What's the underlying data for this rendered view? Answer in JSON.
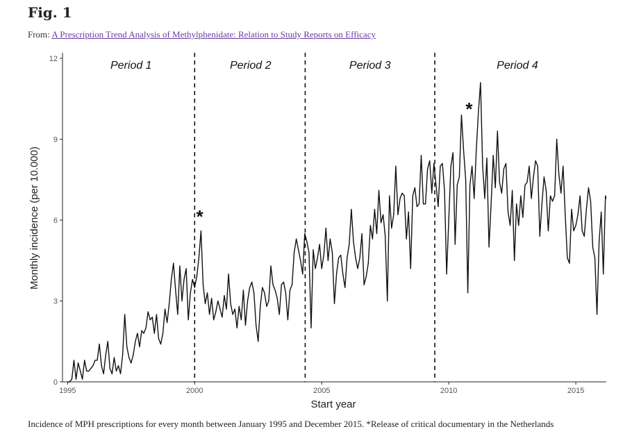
{
  "figure": {
    "title": "Fig. 1",
    "from_prefix": "From:",
    "source_link": "A Prescription Trend Analysis of Methylphenidate: Relation to Study Reports on Efficacy",
    "caption": "Incidence of MPH prescriptions for every month between January 1995 and December 2015. *Release of critical documentary in the Netherlands"
  },
  "colors": {
    "line": "#111111",
    "link": "#6a3aa2",
    "panel": "#ffffff"
  },
  "chart_data": {
    "type": "line",
    "xlabel": "Start year",
    "ylabel": "Monthly incidence (per 10.000)",
    "xlim": [
      1994.8,
      2016.2
    ],
    "ylim": [
      0,
      12
    ],
    "x_ticks": [
      1995,
      2000,
      2005,
      2010,
      2015
    ],
    "y_ticks": [
      0,
      3,
      6,
      9,
      12
    ],
    "grid": false,
    "series": [
      {
        "x_start": "1995-01",
        "step": "month",
        "values": [
          0.0,
          0.0,
          0.1,
          0.8,
          0.1,
          0.7,
          0.4,
          0.1,
          0.8,
          0.4,
          0.4,
          0.5,
          0.6,
          0.8,
          0.8,
          1.4,
          0.6,
          0.3,
          1.0,
          1.5,
          0.5,
          0.3,
          0.9,
          0.4,
          0.6,
          0.3,
          1.0,
          2.5,
          1.3,
          0.9,
          0.7,
          1.0,
          1.5,
          1.8,
          1.3,
          1.9,
          1.8,
          2.0,
          2.6,
          2.3,
          2.4,
          1.8,
          2.5,
          1.6,
          1.4,
          1.8,
          2.7,
          2.2,
          2.9,
          3.8,
          4.4,
          3.4,
          2.5,
          4.3,
          3.0,
          3.8,
          4.2,
          2.3,
          3.3,
          3.8,
          3.5,
          3.9,
          4.6,
          5.6,
          3.6,
          2.9,
          3.3,
          2.5,
          3.1,
          2.3,
          2.6,
          3.0,
          2.7,
          2.4,
          3.2,
          2.7,
          4.0,
          2.9,
          2.5,
          2.7,
          2.0,
          2.8,
          2.3,
          3.4,
          2.1,
          3.0,
          3.5,
          3.7,
          3.3,
          2.1,
          1.5,
          2.8,
          3.5,
          3.3,
          2.8,
          3.0,
          4.3,
          3.6,
          3.4,
          3.1,
          2.5,
          3.6,
          3.7,
          3.3,
          2.3,
          3.4,
          3.6,
          4.8,
          5.3,
          4.9,
          4.5,
          4.0,
          5.5,
          5.2,
          4.8,
          2.0,
          4.9,
          4.2,
          4.6,
          5.1,
          4.2,
          4.7,
          5.7,
          4.5,
          5.3,
          4.8,
          2.9,
          4.0,
          4.6,
          4.7,
          4.0,
          3.5,
          4.6,
          5.1,
          6.4,
          5.2,
          4.6,
          4.2,
          4.6,
          5.5,
          3.6,
          3.9,
          4.4,
          5.8,
          5.3,
          6.4,
          5.5,
          7.1,
          5.9,
          6.2,
          5.4,
          3.0,
          6.9,
          5.7,
          6.2,
          8.0,
          6.2,
          6.8,
          7.0,
          6.9,
          5.3,
          6.3,
          4.2,
          6.9,
          7.2,
          6.5,
          6.6,
          8.4,
          6.6,
          6.6,
          7.9,
          8.2,
          7.0,
          8.1,
          7.3,
          6.5,
          8.0,
          8.1,
          7.1,
          4.0,
          6.0,
          8.0,
          8.5,
          5.1,
          7.3,
          7.6,
          9.9,
          8.6,
          7.5,
          3.3,
          7.3,
          8.0,
          6.8,
          8.6,
          10.0,
          11.1,
          8.0,
          6.8,
          8.3,
          5.0,
          6.6,
          8.4,
          7.2,
          9.3,
          7.4,
          7.0,
          7.9,
          8.1,
          6.3,
          5.8,
          7.1,
          4.5,
          6.6,
          5.8,
          6.9,
          6.1,
          7.3,
          7.4,
          8.0,
          6.8,
          7.6,
          8.2,
          8.0,
          5.4,
          6.6,
          7.6,
          7.1,
          5.6,
          6.9,
          6.7,
          6.9,
          9.0,
          7.7,
          7.0,
          8.0,
          6.2,
          4.6,
          4.4,
          6.4,
          5.6,
          5.8,
          6.2,
          6.9,
          5.6,
          5.4,
          6.4,
          7.2,
          6.7,
          5.0,
          4.6,
          2.5,
          5.2,
          6.3,
          4.0,
          6.9,
          6.7
        ]
      }
    ],
    "annotations": [
      {
        "label": "Period 1",
        "x": 1997.5
      },
      {
        "label": "Period 2",
        "x": 2002.2
      },
      {
        "label": "Period 3",
        "x": 2006.9
      },
      {
        "label": "Period 4",
        "x": 2012.7
      }
    ],
    "vlines": [
      2000.0,
      2004.35,
      2009.45
    ],
    "markers": [
      {
        "label": "*",
        "x": 2000.2,
        "y": 6.2
      },
      {
        "label": "*",
        "x": 2010.8,
        "y": 10.2
      }
    ]
  }
}
